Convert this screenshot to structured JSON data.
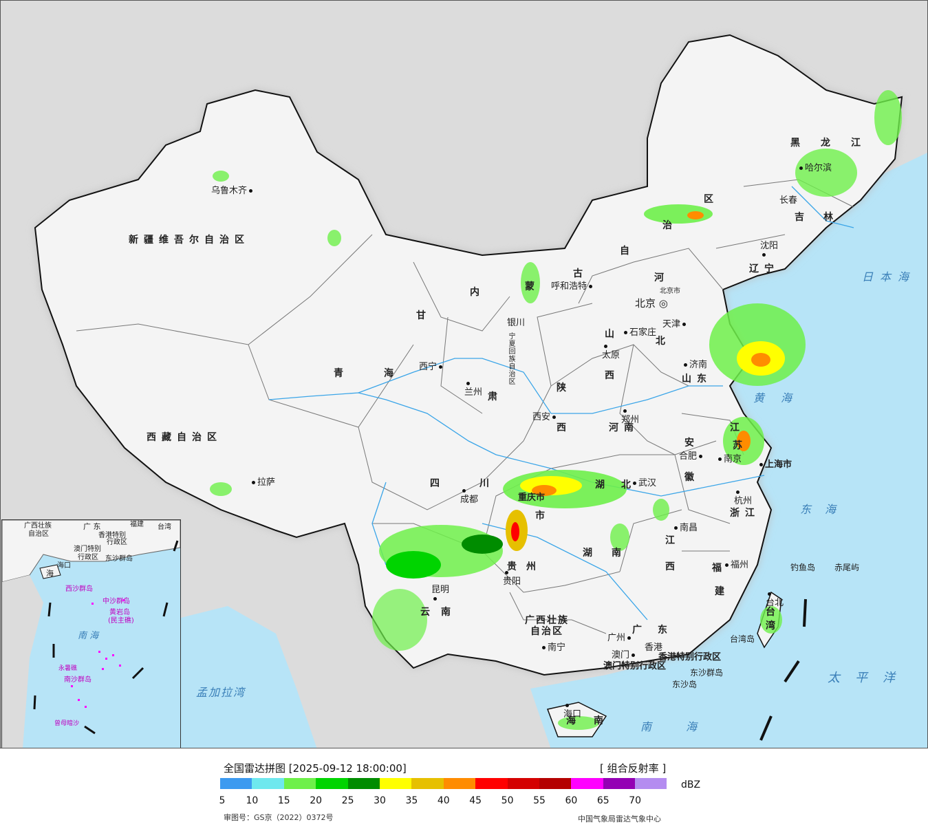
{
  "legend": {
    "title": "全国雷达拼图 [2025-09-12 18:00:00]",
    "product": "[ 组合反射率 ]",
    "unit": "dBZ",
    "ticks": [
      "5",
      "10",
      "15",
      "20",
      "25",
      "30",
      "35",
      "40",
      "45",
      "50",
      "55",
      "60",
      "65",
      "70"
    ],
    "colors": [
      "#3c9af0",
      "#6ee8ee",
      "#6ef04a",
      "#00d400",
      "#008c00",
      "#ffff00",
      "#e6c000",
      "#ff8c00",
      "#ff0000",
      "#d40000",
      "#b40000",
      "#ff00ff",
      "#9400b4",
      "#b48cf0"
    ],
    "approval": "审图号：GS京（2022）0372号",
    "credit": "中国气象局雷达气象中心"
  },
  "map": {
    "colors": {
      "ocean": "#b7e4f7",
      "land": "#f4f4f4",
      "foreign": "#dcdcdc",
      "river": "#3aa5e8"
    },
    "cities": {
      "urumqi": "乌鲁木齐",
      "lhasa": "拉萨",
      "xining": "西宁",
      "lanzhou": "兰州",
      "yinchuan": "银川",
      "hohhot": "呼和浩特",
      "beijing": "北京",
      "beijing_small": "北京市",
      "tianjin": "天津",
      "shijiazhuang": "石家庄",
      "taiyuan": "太原",
      "jinan": "济南",
      "xian": "西安",
      "zhengzhou": "郑州",
      "chengdu": "成都",
      "chongqing": "重庆市",
      "wuhan": "武汉",
      "hefei": "合肥",
      "nanjing": "南京",
      "shanghai": "上海市",
      "hangzhou": "杭州",
      "nanchang": "南昌",
      "fuzhou": "福州",
      "guiyang": "贵阳",
      "kunming": "昆明",
      "nanning": "南宁",
      "guangzhou": "广州",
      "hongkong": "香港",
      "macau": "澳门",
      "haikou": "海口",
      "taipei": "台北",
      "shenyang": "沈阳",
      "changchun": "长春",
      "harbin": "哈尔滨"
    },
    "provinces": {
      "xinjiang": "新疆维吾尔自治区",
      "tibet": "西藏自治区",
      "qinghai_a": "青",
      "qinghai_b": "海",
      "gansu_a": "甘",
      "gansu_b": "肃",
      "sichuan_a": "四",
      "sichuan_b": "川",
      "yunnan_a": "云",
      "yunnan_b": "南",
      "guizhou_a": "贵",
      "guizhou_b": "州",
      "guangxi_a": "广西壮族",
      "guangxi_b": "自治区",
      "guangdong_a": "广",
      "guangdong_b": "东",
      "hunan_a": "湖",
      "hunan_b": "南",
      "hubei_a": "湖",
      "hubei_b": "北",
      "jiangxi_a": "江",
      "jiangxi_b": "西",
      "fujian_a": "福",
      "fujian_b": "建",
      "zhejiang": "浙江",
      "anhui_a": "安",
      "anhui_b": "徽",
      "jiangsu_a": "江",
      "jiangsu_b": "苏",
      "shandong": "山东",
      "henan": "河南",
      "shaanxi_a": "陕",
      "shaanxi_b": "西",
      "shanxi_a": "山",
      "shanxi_b": "西",
      "hebei_a": "河",
      "hebei_b": "北",
      "neimenggu_a": "内",
      "neimenggu_b": "蒙",
      "neimenggu_c": "古",
      "neimenggu_d": "自",
      "neimenggu_e": "治",
      "neimenggu_f": "区",
      "ningxia": "宁夏回族自治区",
      "liaoning_a": "辽",
      "liaoning_b": "宁",
      "jilin_a": "吉",
      "jilin_b": "林",
      "heilongjiang": "黑龙江",
      "hainan_a": "海",
      "hainan_b": "南",
      "taiwan_a": "台",
      "taiwan_b": "湾",
      "hk_sar": "香港特别行政区",
      "macau_sar": "澳门特别行政区",
      "chongqing_sub": "市"
    },
    "islands": {
      "diaoyu": "钓鱼岛",
      "chiwei": "赤尾屿",
      "dongsha_qd": "东沙群岛",
      "dongsha_d": "东沙岛",
      "taiwan_island": "台湾岛"
    },
    "seas": {
      "japan_sea": "日本海",
      "yellow_sea": "黄海",
      "east_sea": "东海",
      "pacific": "太平洋",
      "south_sea": "南海",
      "bengal": "孟加拉湾"
    },
    "inset": {
      "guangxi": "广西壮族",
      "guangxi_b": "自治区",
      "guangdong": "广 东",
      "fujian": "福建",
      "taiwan": "台湾",
      "hk": "香港特别",
      "hk_b": "行政区",
      "macau": "澳门特别",
      "macau_b": "行政区",
      "dongsha": "东沙群岛",
      "hainan": "海口",
      "hainan_sea": "海",
      "xisha": "西沙群岛",
      "zhongsha": "中沙群岛",
      "huangyan": "黄岩岛",
      "huangyan_b": "(民主礁)",
      "nanhai": "南  海",
      "yongshu": "永暑礁",
      "nansha": "南沙群岛",
      "zengmu": "曾母暗沙"
    }
  }
}
